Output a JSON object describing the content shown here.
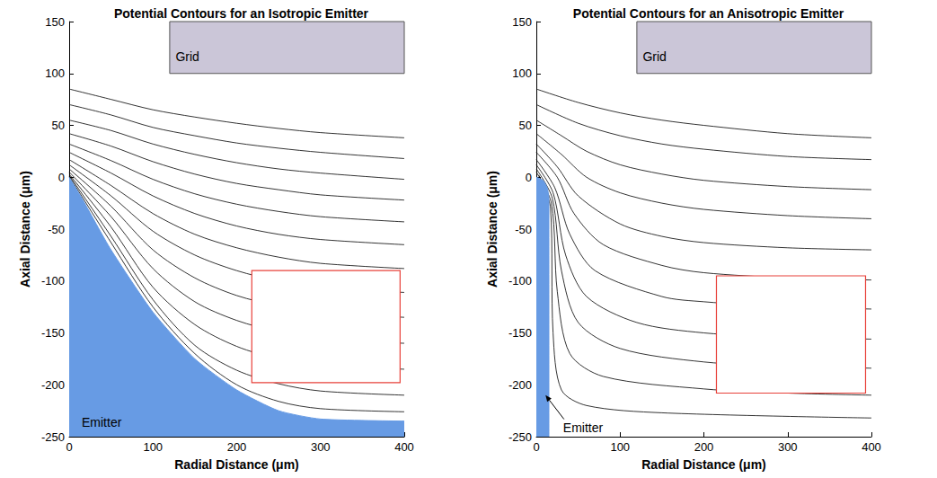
{
  "chart_data": [
    {
      "type": "line",
      "title": "Potential Contours for an Isotropic Emitter",
      "x_label": "Radial Distance (μm)",
      "y_label": "Axial Distance (μm)",
      "xlim": [
        0,
        400
      ],
      "xticks": [
        0,
        100,
        200,
        300,
        400
      ],
      "ylim": [
        -250,
        150
      ],
      "yticks": [
        -250,
        -200,
        -150,
        -100,
        -50,
        0,
        50,
        100,
        150
      ],
      "grid": false,
      "line_style": "solid",
      "color": "#000000",
      "contours": [
        [
          [
            0,
            85
          ],
          [
            50,
            75
          ],
          [
            100,
            65
          ],
          [
            150,
            58
          ],
          [
            200,
            52
          ],
          [
            250,
            47
          ],
          [
            300,
            43
          ],
          [
            400,
            38
          ]
        ],
        [
          [
            0,
            70
          ],
          [
            50,
            60
          ],
          [
            100,
            48
          ],
          [
            150,
            40
          ],
          [
            200,
            33
          ],
          [
            250,
            28
          ],
          [
            300,
            24
          ],
          [
            400,
            18
          ]
        ],
        [
          [
            0,
            55
          ],
          [
            50,
            45
          ],
          [
            100,
            32
          ],
          [
            150,
            22
          ],
          [
            200,
            14
          ],
          [
            250,
            8
          ],
          [
            300,
            4
          ],
          [
            400,
            -2
          ]
        ],
        [
          [
            0,
            42
          ],
          [
            50,
            30
          ],
          [
            100,
            15
          ],
          [
            150,
            3
          ],
          [
            200,
            -6
          ],
          [
            250,
            -12
          ],
          [
            300,
            -17
          ],
          [
            400,
            -22
          ]
        ],
        [
          [
            0,
            32
          ],
          [
            50,
            16
          ],
          [
            100,
            -2
          ],
          [
            150,
            -16
          ],
          [
            200,
            -26
          ],
          [
            250,
            -33
          ],
          [
            300,
            -38
          ],
          [
            400,
            -43
          ]
        ],
        [
          [
            0,
            24
          ],
          [
            50,
            4
          ],
          [
            100,
            -18
          ],
          [
            150,
            -35
          ],
          [
            200,
            -47
          ],
          [
            250,
            -55
          ],
          [
            300,
            -60
          ],
          [
            400,
            -65
          ]
        ],
        [
          [
            0,
            17
          ],
          [
            50,
            -8
          ],
          [
            100,
            -35
          ],
          [
            150,
            -55
          ],
          [
            200,
            -68
          ],
          [
            250,
            -77
          ],
          [
            300,
            -83
          ],
          [
            400,
            -88
          ]
        ],
        [
          [
            0,
            12
          ],
          [
            50,
            -18
          ],
          [
            100,
            -52
          ],
          [
            150,
            -75
          ],
          [
            200,
            -90
          ],
          [
            250,
            -100
          ],
          [
            300,
            -106
          ],
          [
            400,
            -111
          ]
        ],
        [
          [
            0,
            8
          ],
          [
            50,
            -28
          ],
          [
            100,
            -70
          ],
          [
            150,
            -97
          ],
          [
            200,
            -114
          ],
          [
            250,
            -124
          ],
          [
            300,
            -130
          ],
          [
            400,
            -135
          ]
        ],
        [
          [
            0,
            5
          ],
          [
            50,
            -38
          ],
          [
            100,
            -88
          ],
          [
            150,
            -120
          ],
          [
            200,
            -138
          ],
          [
            250,
            -149
          ],
          [
            300,
            -156
          ],
          [
            400,
            -160
          ]
        ],
        [
          [
            0,
            3
          ],
          [
            50,
            -48
          ],
          [
            100,
            -106
          ],
          [
            150,
            -142
          ],
          [
            200,
            -163
          ],
          [
            250,
            -175
          ],
          [
            300,
            -181
          ],
          [
            400,
            -185
          ]
        ],
        [
          [
            0,
            2
          ],
          [
            50,
            -57
          ],
          [
            100,
            -118
          ],
          [
            150,
            -162
          ],
          [
            200,
            -186
          ],
          [
            250,
            -199
          ],
          [
            300,
            -206
          ],
          [
            400,
            -210
          ]
        ],
        [
          [
            0,
            1
          ],
          [
            50,
            -63
          ],
          [
            100,
            -125
          ],
          [
            150,
            -170
          ],
          [
            200,
            -200
          ],
          [
            250,
            -216
          ],
          [
            300,
            -223
          ],
          [
            400,
            -226
          ]
        ]
      ],
      "emitter": {
        "label": "Emitter",
        "color": "#679be4",
        "label_at": [
          15,
          -236
        ],
        "points": [
          [
            0,
            0
          ],
          [
            15,
            -20
          ],
          [
            50,
            -70
          ],
          [
            100,
            -130
          ],
          [
            150,
            -175
          ],
          [
            200,
            -205
          ],
          [
            250,
            -225
          ],
          [
            300,
            -233
          ],
          [
            400,
            -235
          ]
        ]
      },
      "grid_plate": {
        "label": "Grid",
        "color": "#cbc6d8",
        "label_at": [
          127,
          116
        ],
        "xlim": [
          120,
          400
        ],
        "ylim": [
          100,
          150
        ]
      },
      "inset": {
        "color": "#e8413a",
        "xlim": [
          218,
          395
        ],
        "ylim": [
          -198,
          -90
        ]
      }
    },
    {
      "type": "line",
      "title": "Potential Contours for an Anisotropic Emitter",
      "x_label": "Radial Distance (μm)",
      "y_label": "Axial Distance (μm)",
      "xlim": [
        0,
        400
      ],
      "xticks": [
        0,
        100,
        200,
        300,
        400
      ],
      "ylim": [
        -250,
        150
      ],
      "yticks": [
        -250,
        -200,
        -150,
        -100,
        -50,
        0,
        50,
        100,
        150
      ],
      "grid": false,
      "line_style": "solid",
      "color": "#000000",
      "contours": [
        [
          [
            0,
            85
          ],
          [
            50,
            72
          ],
          [
            100,
            62
          ],
          [
            150,
            55
          ],
          [
            200,
            50
          ],
          [
            300,
            42
          ],
          [
            400,
            38
          ]
        ],
        [
          [
            0,
            70
          ],
          [
            50,
            52
          ],
          [
            100,
            40
          ],
          [
            150,
            32
          ],
          [
            200,
            27
          ],
          [
            300,
            20
          ],
          [
            400,
            17
          ]
        ],
        [
          [
            0,
            55
          ],
          [
            30,
            40
          ],
          [
            60,
            25
          ],
          [
            100,
            12
          ],
          [
            150,
            3
          ],
          [
            200,
            -3
          ],
          [
            300,
            -9
          ],
          [
            400,
            -12
          ]
        ],
        [
          [
            0,
            42
          ],
          [
            30,
            22
          ],
          [
            60,
            0
          ],
          [
            100,
            -15
          ],
          [
            150,
            -25
          ],
          [
            200,
            -31
          ],
          [
            300,
            -37
          ],
          [
            400,
            -40
          ]
        ],
        [
          [
            0,
            32
          ],
          [
            25,
            10
          ],
          [
            50,
            -18
          ],
          [
            100,
            -45
          ],
          [
            150,
            -57
          ],
          [
            200,
            -63
          ],
          [
            300,
            -68
          ],
          [
            400,
            -70
          ]
        ],
        [
          [
            0,
            24
          ],
          [
            25,
            0
          ],
          [
            45,
            -35
          ],
          [
            80,
            -65
          ],
          [
            150,
            -85
          ],
          [
            200,
            -92
          ],
          [
            300,
            -97
          ],
          [
            400,
            -99
          ]
        ],
        [
          [
            0,
            17
          ],
          [
            22,
            -10
          ],
          [
            40,
            -55
          ],
          [
            70,
            -90
          ],
          [
            150,
            -115
          ],
          [
            200,
            -120
          ],
          [
            300,
            -125
          ],
          [
            400,
            -127
          ]
        ],
        [
          [
            0,
            12
          ],
          [
            20,
            -15
          ],
          [
            35,
            -75
          ],
          [
            60,
            -115
          ],
          [
            120,
            -140
          ],
          [
            200,
            -150
          ],
          [
            300,
            -154
          ],
          [
            400,
            -156
          ]
        ],
        [
          [
            0,
            8
          ],
          [
            19,
            -20
          ],
          [
            30,
            -90
          ],
          [
            50,
            -140
          ],
          [
            100,
            -165
          ],
          [
            200,
            -178
          ],
          [
            300,
            -182
          ],
          [
            400,
            -184
          ]
        ],
        [
          [
            0,
            5
          ],
          [
            18,
            -25
          ],
          [
            25,
            -110
          ],
          [
            40,
            -170
          ],
          [
            80,
            -192
          ],
          [
            200,
            -204
          ],
          [
            300,
            -208
          ],
          [
            400,
            -210
          ]
        ],
        [
          [
            3,
            2
          ],
          [
            17,
            -30
          ],
          [
            20,
            -150
          ],
          [
            30,
            -205
          ],
          [
            60,
            -220
          ],
          [
            150,
            -227
          ],
          [
            400,
            -232
          ]
        ]
      ],
      "emitter": {
        "label": "Emitter",
        "color": "#679be4",
        "label_at": [
          32,
          -241
        ],
        "arrow_to": [
          11,
          -210
        ],
        "points": [
          [
            0,
            0
          ],
          [
            8,
            -3
          ],
          [
            13,
            -10
          ],
          [
            15,
            -20
          ],
          [
            15,
            -250
          ]
        ]
      },
      "grid_plate": {
        "label": "Grid",
        "color": "#cbc6d8",
        "label_at": [
          127,
          116
        ],
        "xlim": [
          120,
          400
        ],
        "ylim": [
          100,
          150
        ]
      },
      "inset": {
        "color": "#e8413a",
        "xlim": [
          215,
          393
        ],
        "ylim": [
          -208,
          -95
        ]
      }
    }
  ]
}
